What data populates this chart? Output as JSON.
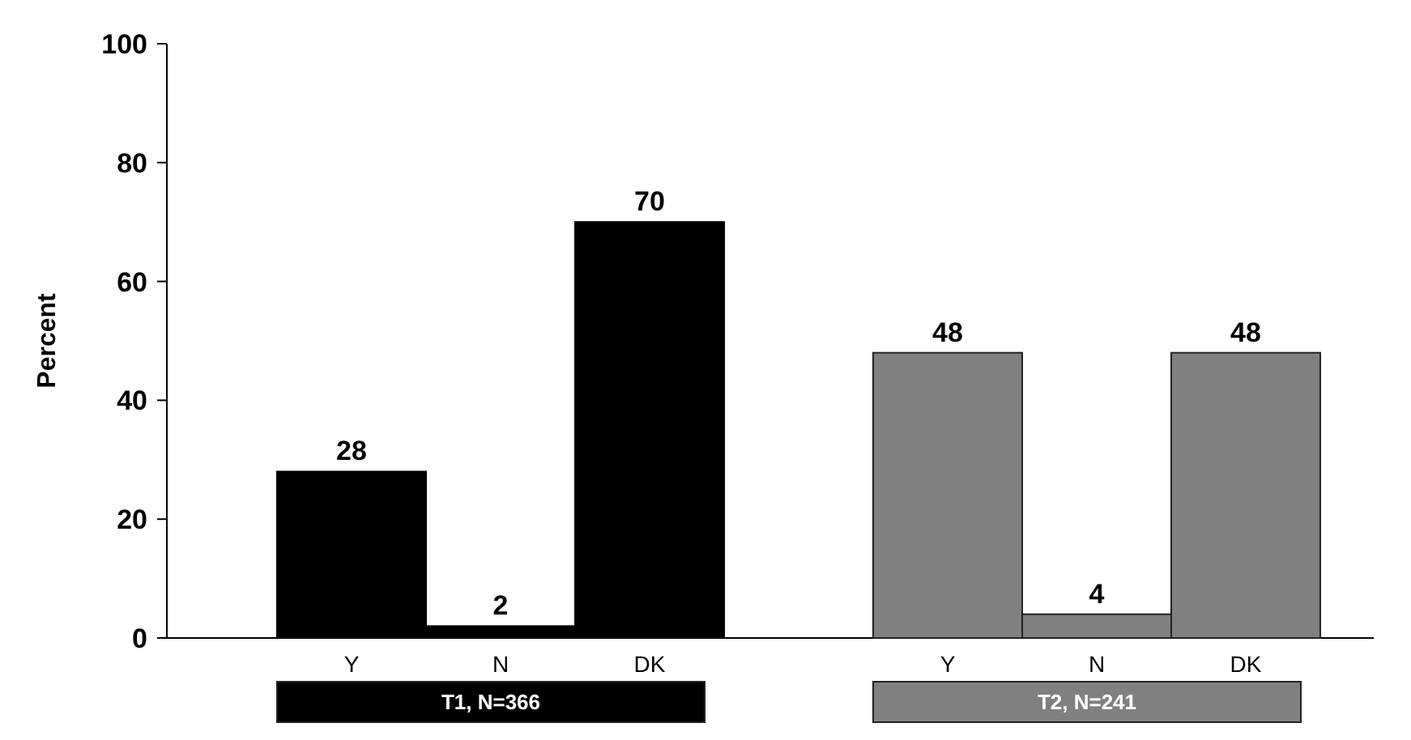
{
  "chart_data": {
    "type": "bar",
    "ylabel": "Percent",
    "categories": [
      "Y",
      "N",
      "DK",
      null,
      "Y",
      "N",
      "DK"
    ],
    "series": [
      {
        "name": "T1, N=366",
        "color": "#000000",
        "values": [
          28,
          2,
          70,
          null,
          null,
          null,
          null
        ]
      },
      {
        "name": "T2, N=241",
        "color": "#808080",
        "values": [
          null,
          null,
          null,
          null,
          48,
          4,
          48
        ]
      }
    ],
    "ylim": [
      0,
      100
    ],
    "yticks": [
      0,
      20,
      40,
      60,
      80,
      100
    ],
    "data_labels": true,
    "grid": false,
    "legend": "bottom"
  }
}
